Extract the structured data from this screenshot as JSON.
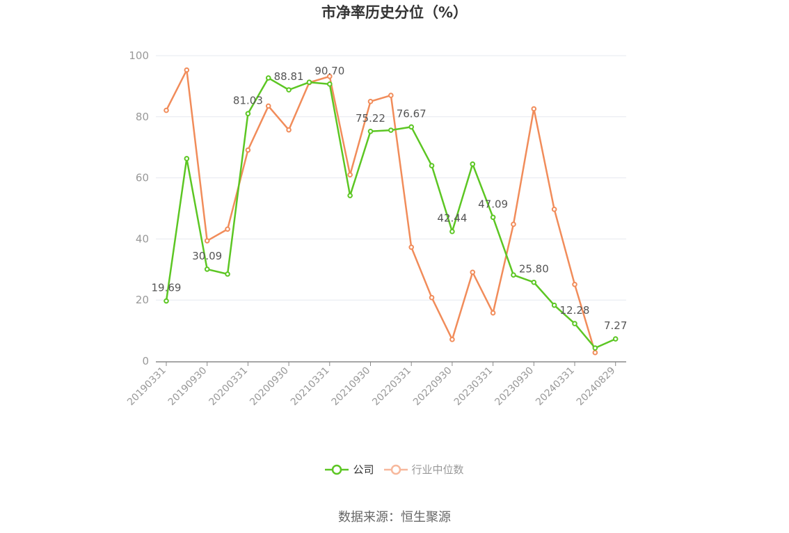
{
  "title": "市净率历史分位（%）",
  "source": "数据来源：恒生聚源",
  "colors": {
    "company": "#5cc623",
    "industry": "#f18c5a",
    "industry_legend": "#f7b89c"
  },
  "chart_data": {
    "type": "line",
    "title": "市净率历史分位（%）",
    "ylim": [
      0,
      100
    ],
    "yticks": [
      0,
      20,
      40,
      60,
      80,
      100
    ],
    "grid": true,
    "legend_position": "bottom",
    "x_tick_labels": [
      "20190331",
      "20190930",
      "20200331",
      "20200930",
      "20210331",
      "20210930",
      "20220331",
      "20220930",
      "20230331",
      "20230930",
      "20240331",
      "20240829"
    ],
    "x_tick_index": [
      0,
      2,
      4,
      6,
      8,
      10,
      12,
      14,
      16,
      18,
      20,
      22
    ],
    "series": [
      {
        "name": "公司",
        "values": [
          19.69,
          66.3,
          30.09,
          28.5,
          81.03,
          92.7,
          88.81,
          91.3,
          90.7,
          54.2,
          75.22,
          75.6,
          76.67,
          64.0,
          42.44,
          64.5,
          47.09,
          28.2,
          25.8,
          18.3,
          12.28,
          4.3,
          7.27
        ],
        "labels": {
          "0": "19.69",
          "2": "30.09",
          "4": "81.03",
          "6": "88.81",
          "8": "90.70",
          "10": "75.22",
          "12": "76.67",
          "14": "42.44",
          "16": "47.09",
          "18": "25.80",
          "20": "12.28",
          "22": "7.27"
        }
      },
      {
        "name": "行业中位数",
        "values": [
          82.1,
          95.3,
          39.4,
          43.2,
          69.1,
          83.5,
          75.7,
          91.2,
          93.2,
          61.0,
          85.0,
          87.0,
          37.3,
          20.8,
          7.1,
          29.1,
          15.8,
          44.8,
          82.6,
          49.7,
          25.1,
          2.8,
          null
        ]
      }
    ]
  },
  "legend": {
    "company": "公司",
    "industry": "行业中位数"
  }
}
